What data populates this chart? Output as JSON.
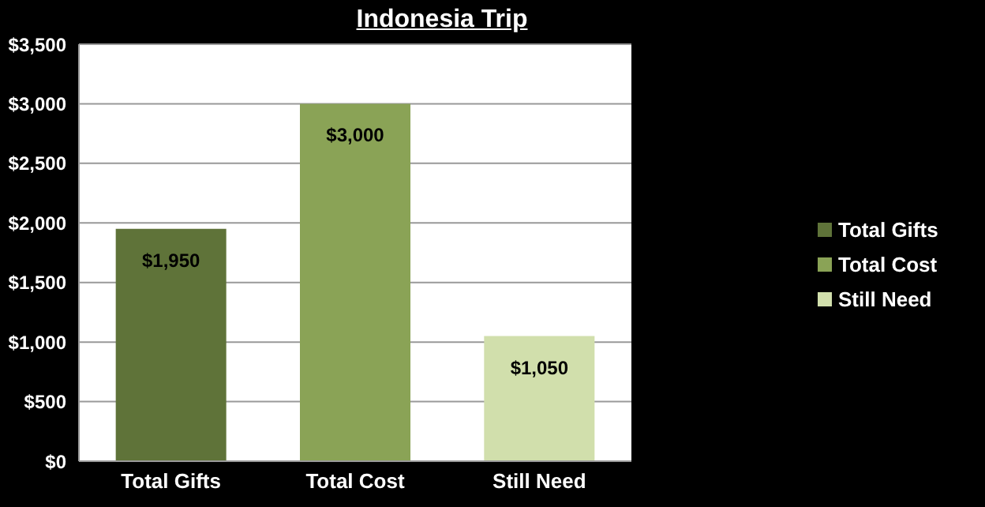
{
  "chart_data": {
    "type": "bar",
    "title": "Indonesia Trip",
    "categories": [
      "Total Gifts",
      "Total Cost",
      "Still Need"
    ],
    "stacked": true,
    "series": [
      {
        "name": "Total Gifts",
        "color": "#5f7339",
        "values": [
          1950,
          null,
          null
        ],
        "value_labels": [
          "$1,950",
          null,
          null
        ]
      },
      {
        "name": "Total Cost",
        "color": "#8aa356",
        "values": [
          null,
          3000,
          null
        ],
        "value_labels": [
          null,
          "$3,000",
          null
        ]
      },
      {
        "name": "Still Need",
        "color": "#d1dfac",
        "values": [
          null,
          null,
          1050
        ],
        "value_labels": [
          null,
          null,
          "$1,050"
        ]
      }
    ],
    "ylim": [
      0,
      3500
    ],
    "yticks": [
      {
        "value": 0,
        "label": "$0"
      },
      {
        "value": 500,
        "label": "$500"
      },
      {
        "value": 1000,
        "label": "$1,000"
      },
      {
        "value": 1500,
        "label": "$1,500"
      },
      {
        "value": 2000,
        "label": "$2,000"
      },
      {
        "value": 2500,
        "label": "$2,500"
      },
      {
        "value": 3000,
        "label": "$3,000"
      },
      {
        "value": 3500,
        "label": "$3,500"
      }
    ],
    "grid": "y",
    "legend": "right"
  }
}
